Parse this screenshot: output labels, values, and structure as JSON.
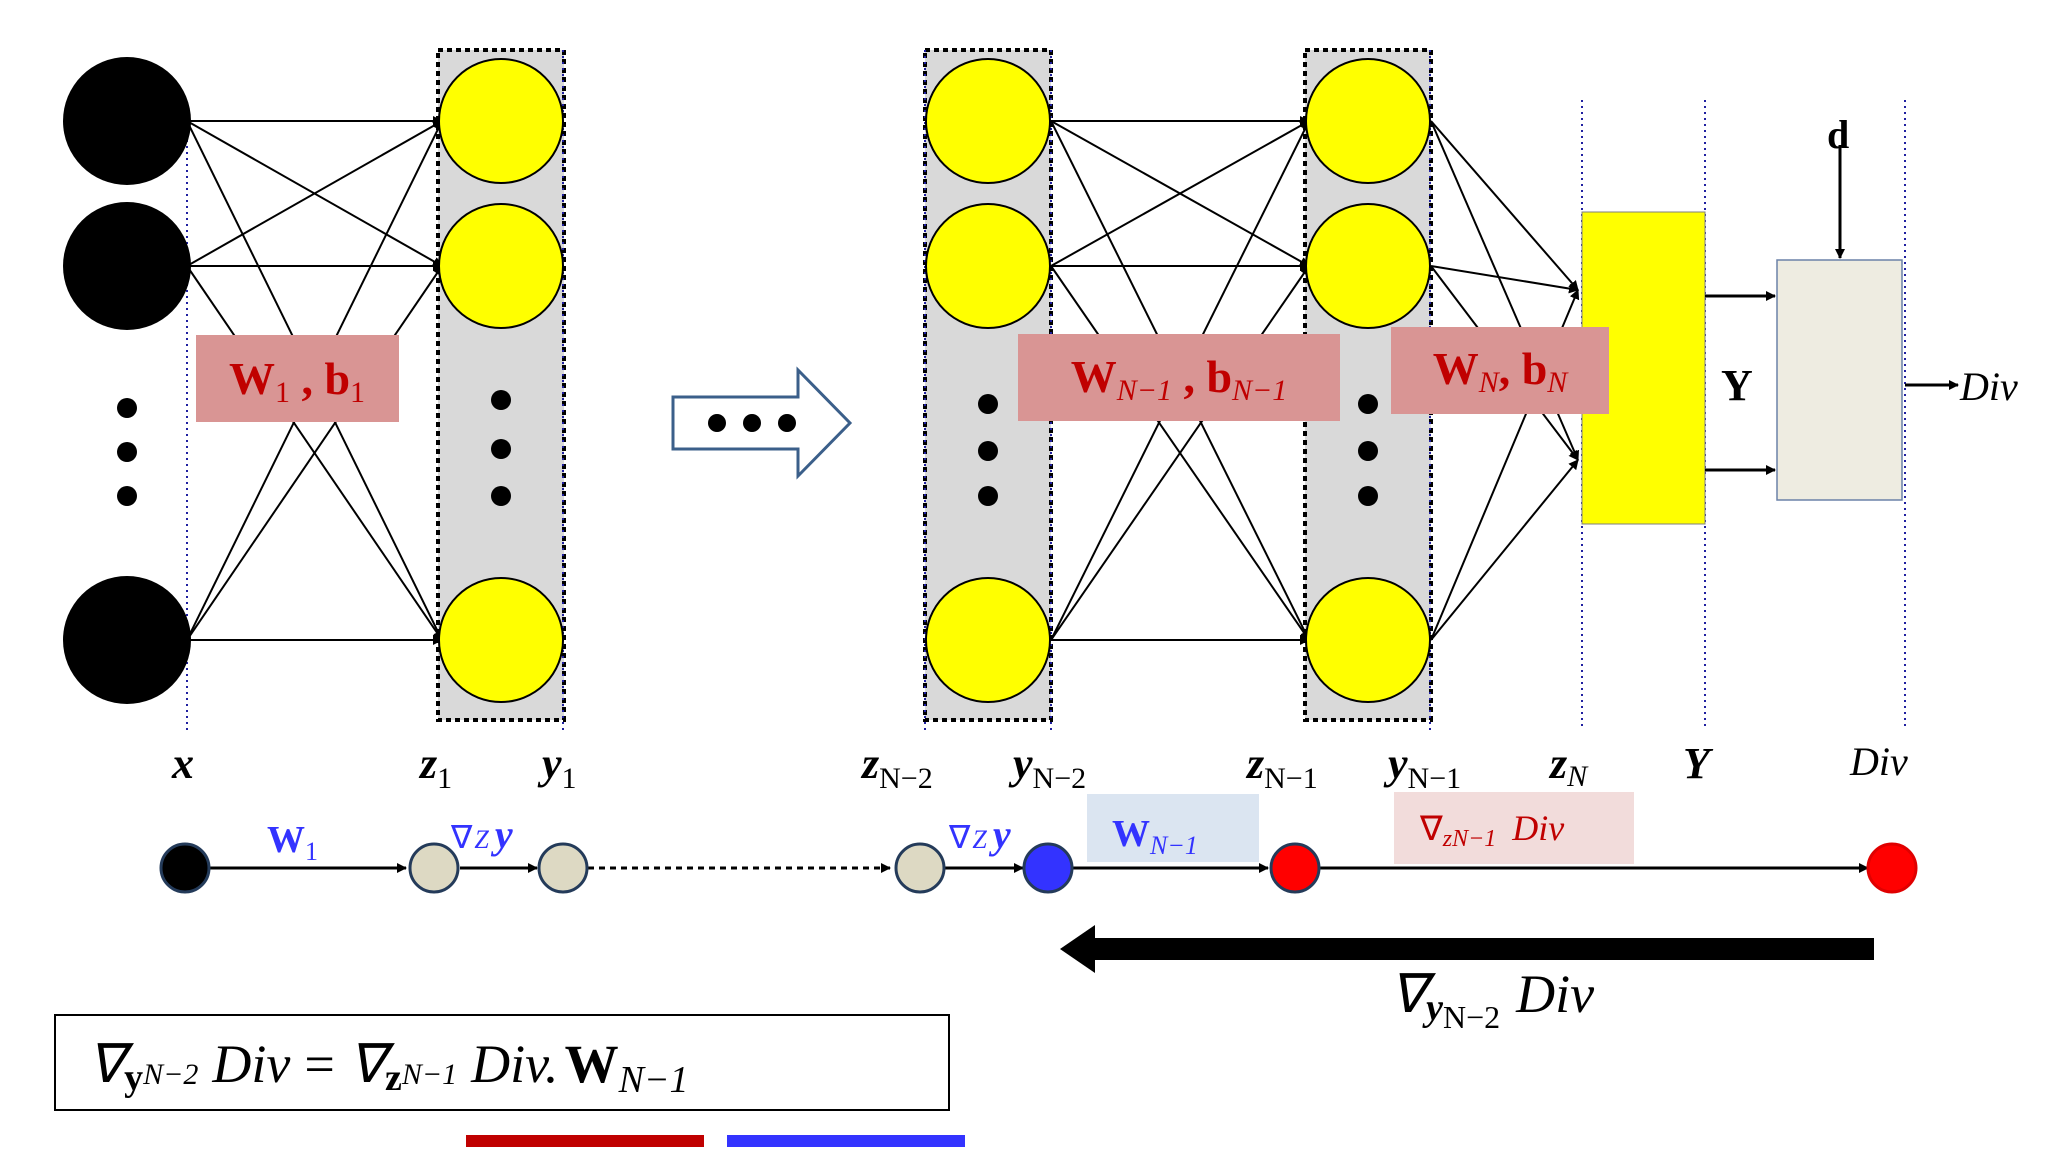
{
  "input_axis_label": "x",
  "first_layer": {
    "weight_box": {
      "w": "W",
      "w_sub": "1",
      "sep": " , ",
      "b": "b",
      "b_sub": "1"
    },
    "z_label": {
      "sym": "z",
      "sub": "1"
    },
    "y_label": {
      "sym": "y",
      "sub": "1"
    }
  },
  "hidden_layer": {
    "weight_box": {
      "w": "W",
      "w_sub": "N−1",
      "sep": " , ",
      "b": "b",
      "b_sub": "N−1"
    },
    "z_prev_label": {
      "sym": "z",
      "sub": "N−2"
    },
    "y_prev_label": {
      "sym": "y",
      "sub": "N−2"
    },
    "z_label": {
      "sym": "z",
      "sub": "N−1"
    },
    "y_label": {
      "sym": "y",
      "sub": "N−1"
    }
  },
  "output_layer": {
    "weight_box": {
      "w": "W",
      "w_sub": "N",
      "sep": ", ",
      "b": "b",
      "b_sub": "N"
    },
    "z_label": {
      "sym": "z",
      "sub": "N"
    },
    "Y_label": "Y",
    "Y_axis_label": "Y",
    "target_label": "d",
    "div_output": "Div",
    "div_axis_label": "Div"
  },
  "chain": {
    "w1_label": {
      "sym": "W",
      "sub": "1"
    },
    "grad_z_y_1": {
      "nabla": "∇",
      "z": "Z",
      "y": "y"
    },
    "grad_z_y_2": {
      "nabla": "∇",
      "z": "Z",
      "y": "y"
    },
    "w_n1_label": {
      "sym": "W",
      "sub": "N−1"
    },
    "grad_zn1_div": {
      "nabla": "∇",
      "z": "zN−1",
      "div": "Div"
    }
  },
  "backward_arrow_label": {
    "nabla": "∇",
    "y": "y",
    "sub": "N−2",
    "div": "Div"
  },
  "equation": {
    "lhs_nabla": "∇",
    "lhs_y": "y",
    "lhs_sub": "N−2",
    "lhs_div": "Div",
    "equals": "=",
    "rhs_nabla": "∇",
    "rhs_z": "z",
    "rhs_sub": "N−1",
    "rhs_div": "Div.",
    "rhs_w": "W",
    "rhs_w_sub": "N−1"
  },
  "colors": {
    "input_node": "#000000",
    "neuron": "#ffff00",
    "layer_band": "#d9d9d9",
    "weight_box": "#d99594",
    "weight_text": "#c00000",
    "output_box": "#ffff00",
    "div_box": "#eeece1",
    "chain_blue": "#3333ff",
    "chain_red": "#ff0000",
    "chain_beige": "#ddd9c3",
    "underline_red": "#c00000",
    "underline_blue": "#3333ff",
    "w_highlight": "#dbe5f1",
    "grad_highlight": "#f2dcdb",
    "arrow_outline": "#3b5f8a"
  }
}
